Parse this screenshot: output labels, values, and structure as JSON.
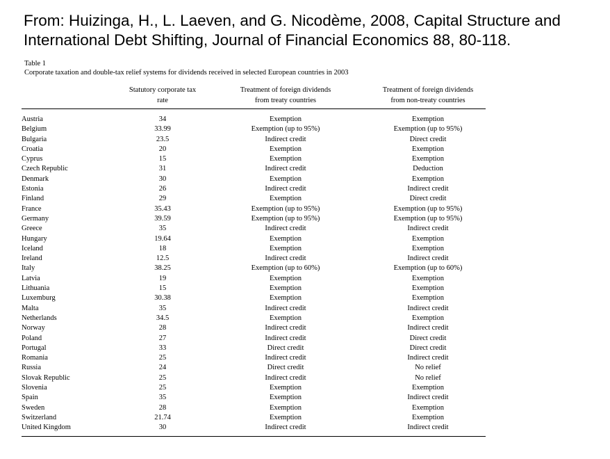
{
  "source_citation": {
    "line1": "From: Huizinga, H., L. Laeven, and G. Nicodème, 2008, Capital Structure and",
    "line2": "International Debt Shifting, Journal of Financial Economics 88, 80-118."
  },
  "table": {
    "label": "Table 1",
    "caption": "Corporate taxation and double-tax relief systems for dividends received in selected European countries in 2003",
    "headers": {
      "tax_rate": [
        "Statutory corporate tax",
        "rate"
      ],
      "treaty": [
        "Treatment of foreign dividends",
        "from treaty countries"
      ],
      "non_treaty": [
        "Treatment of foreign dividends",
        "from non-treaty countries"
      ]
    },
    "rows": [
      {
        "country": "Austria",
        "rate": "34",
        "treaty": "Exemption",
        "non_treaty": "Exemption"
      },
      {
        "country": "Belgium",
        "rate": "33.99",
        "treaty": "Exemption (up to 95%)",
        "non_treaty": "Exemption (up to 95%)"
      },
      {
        "country": "Bulgaria",
        "rate": "23.5",
        "treaty": "Indirect credit",
        "non_treaty": "Direct credit"
      },
      {
        "country": "Croatia",
        "rate": "20",
        "treaty": "Exemption",
        "non_treaty": "Exemption"
      },
      {
        "country": "Cyprus",
        "rate": "15",
        "treaty": "Exemption",
        "non_treaty": "Exemption"
      },
      {
        "country": "Czech Republic",
        "rate": "31",
        "treaty": "Indirect credit",
        "non_treaty": "Deduction"
      },
      {
        "country": "Denmark",
        "rate": "30",
        "treaty": "Exemption",
        "non_treaty": "Exemption"
      },
      {
        "country": "Estonia",
        "rate": "26",
        "treaty": "Indirect credit",
        "non_treaty": "Indirect credit"
      },
      {
        "country": "Finland",
        "rate": "29",
        "treaty": "Exemption",
        "non_treaty": "Direct credit"
      },
      {
        "country": "France",
        "rate": "35.43",
        "treaty": "Exemption (up to 95%)",
        "non_treaty": "Exemption (up to 95%)"
      },
      {
        "country": "Germany",
        "rate": "39.59",
        "treaty": "Exemption (up to 95%)",
        "non_treaty": "Exemption (up to 95%)"
      },
      {
        "country": "Greece",
        "rate": "35",
        "treaty": "Indirect credit",
        "non_treaty": "Indirect credit"
      },
      {
        "country": "Hungary",
        "rate": "19.64",
        "treaty": "Exemption",
        "non_treaty": "Exemption"
      },
      {
        "country": "Iceland",
        "rate": "18",
        "treaty": "Exemption",
        "non_treaty": "Exemption"
      },
      {
        "country": "Ireland",
        "rate": "12.5",
        "treaty": "Indirect credit",
        "non_treaty": "Indirect credit"
      },
      {
        "country": "Italy",
        "rate": "38.25",
        "treaty": "Exemption (up to 60%)",
        "non_treaty": "Exemption (up to 60%)"
      },
      {
        "country": "Latvia",
        "rate": "19",
        "treaty": "Exemption",
        "non_treaty": "Exemption"
      },
      {
        "country": "Lithuania",
        "rate": "15",
        "treaty": "Exemption",
        "non_treaty": "Exemption"
      },
      {
        "country": "Luxemburg",
        "rate": "30.38",
        "treaty": "Exemption",
        "non_treaty": "Exemption"
      },
      {
        "country": "Malta",
        "rate": "35",
        "treaty": "Indirect credit",
        "non_treaty": "Indirect credit"
      },
      {
        "country": "Netherlands",
        "rate": "34.5",
        "treaty": "Exemption",
        "non_treaty": "Exemption"
      },
      {
        "country": "Norway",
        "rate": "28",
        "treaty": "Indirect credit",
        "non_treaty": "Indirect credit"
      },
      {
        "country": "Poland",
        "rate": "27",
        "treaty": "Indirect credit",
        "non_treaty": "Direct credit"
      },
      {
        "country": "Portugal",
        "rate": "33",
        "treaty": "Direct credit",
        "non_treaty": "Direct credit"
      },
      {
        "country": "Romania",
        "rate": "25",
        "treaty": "Indirect credit",
        "non_treaty": "Indirect credit"
      },
      {
        "country": "Russia",
        "rate": "24",
        "treaty": "Direct credit",
        "non_treaty": "No relief"
      },
      {
        "country": "Slovak Republic",
        "rate": "25",
        "treaty": "Indirect credit",
        "non_treaty": "No relief"
      },
      {
        "country": "Slovenia",
        "rate": "25",
        "treaty": "Exemption",
        "non_treaty": "Exemption"
      },
      {
        "country": "Spain",
        "rate": "35",
        "treaty": "Exemption",
        "non_treaty": "Indirect credit"
      },
      {
        "country": "Sweden",
        "rate": "28",
        "treaty": "Exemption",
        "non_treaty": "Exemption"
      },
      {
        "country": "Switzerland",
        "rate": "21.74",
        "treaty": "Exemption",
        "non_treaty": "Exemption"
      },
      {
        "country": "United Kingdom",
        "rate": "30",
        "treaty": "Indirect credit",
        "non_treaty": "Indirect credit"
      }
    ]
  }
}
